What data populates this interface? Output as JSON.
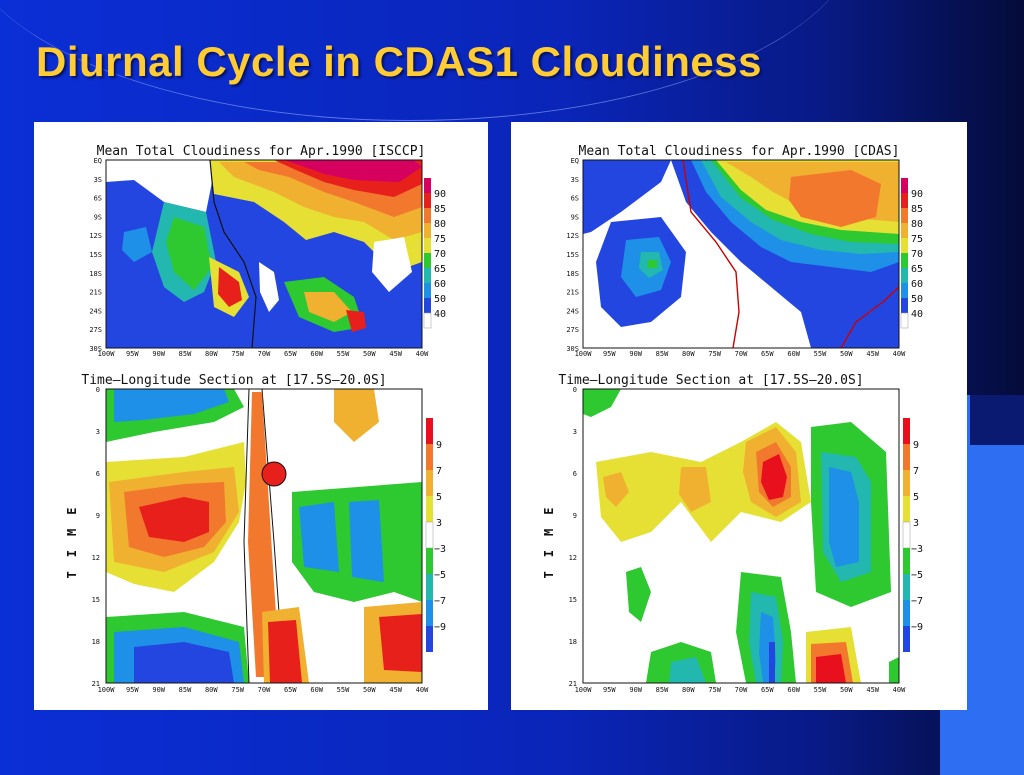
{
  "slide": {
    "title": "Diurnal Cycle in CDAS1 Cloudiness",
    "colors": {
      "background": "#0b2fd6",
      "title": "#ffcc33",
      "accent_box": "#2e6ef2"
    }
  },
  "panels": [
    {
      "map_title": "Mean Total Cloudiness for Apr.1990 [ISCCP]",
      "section_title": "Time—Longitude Section at [17.5S—20.0S]"
    },
    {
      "map_title": "Mean Total Cloudiness for Apr.1990 [CDAS]",
      "section_title": "Time—Longitude Section at [17.5S—20.0S]"
    }
  ],
  "axes": {
    "lat_ticks": [
      "EQ",
      "3S",
      "6S",
      "9S",
      "12S",
      "15S",
      "18S",
      "21S",
      "24S",
      "27S",
      "30S"
    ],
    "lon_ticks": [
      "100W",
      "95W",
      "90W",
      "85W",
      "80W",
      "75W",
      "70W",
      "65W",
      "60W",
      "55W",
      "50W",
      "45W",
      "40W"
    ],
    "time_ticks": [
      "0",
      "3",
      "6",
      "9",
      "12",
      "15",
      "18",
      "21"
    ],
    "time_label": "TIME"
  },
  "chart_data": [
    {
      "type": "heatmap",
      "title": "Mean Total Cloudiness for Apr.1990 [ISCCP]",
      "legend": {
        "labels": [
          "90",
          "85",
          "80",
          "75",
          "70",
          "65",
          "60",
          "50",
          "40"
        ],
        "colors": [
          "#d6005f",
          "#e8201c",
          "#f2782d",
          "#f0b030",
          "#e6e035",
          "#2ec830",
          "#22b8b0",
          "#1e90e8",
          "#2446e0",
          "#ffffff"
        ]
      }
    },
    {
      "type": "heatmap",
      "title": "Time—Longitude Section at [17.5S—20.0S]",
      "legend": {
        "labels": [
          "9",
          "7",
          "5",
          "3",
          "−3",
          "−5",
          "−7",
          "−9"
        ],
        "colors": [
          "#e8101c",
          "#f2782d",
          "#f0b030",
          "#e6e035",
          "#ffffff",
          "#2ec830",
          "#22b8b0",
          "#1e90e8",
          "#2446e0"
        ]
      }
    },
    {
      "type": "heatmap",
      "title": "Mean Total Cloudiness for Apr.1990 [CDAS]",
      "legend": {
        "labels": [
          "90",
          "85",
          "80",
          "75",
          "70",
          "65",
          "60",
          "50",
          "40"
        ],
        "colors": [
          "#d6005f",
          "#e8201c",
          "#f2782d",
          "#f0b030",
          "#e6e035",
          "#2ec830",
          "#22b8b0",
          "#1e90e8",
          "#2446e0",
          "#ffffff"
        ]
      }
    },
    {
      "type": "heatmap",
      "title": "Time—Longitude Section at [17.5S—20.0S]",
      "legend": {
        "labels": [
          "9",
          "7",
          "5",
          "3",
          "−3",
          "−5",
          "−7",
          "−9"
        ],
        "colors": [
          "#e8101c",
          "#f2782d",
          "#f0b030",
          "#e6e035",
          "#ffffff",
          "#2ec830",
          "#22b8b0",
          "#1e90e8",
          "#2446e0"
        ]
      }
    }
  ]
}
